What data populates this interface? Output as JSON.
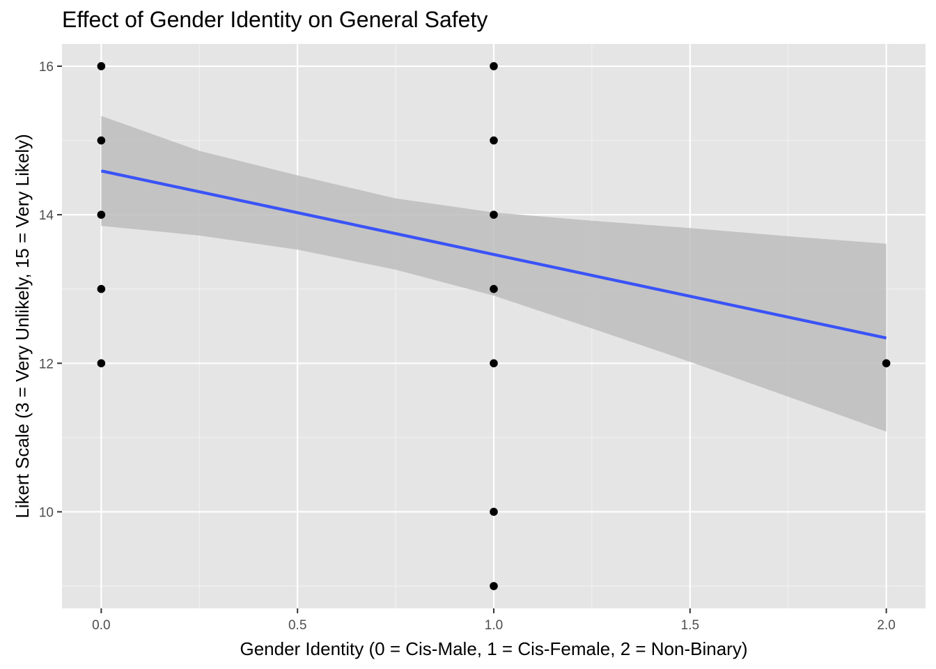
{
  "chart_data": {
    "type": "scatter",
    "title": "Effect of Gender Identity on General Safety",
    "xlabel": "Gender Identity (0 = Cis-Male, 1 = Cis-Female, 2 = Non-Binary)",
    "ylabel": "Likert Scale (3 = Very Unlikely, 15 = Very Likely)",
    "xlim": [
      -0.1,
      2.1
    ],
    "ylim": [
      8.7,
      16.3
    ],
    "x_ticks": [
      0.0,
      0.5,
      1.0,
      1.5,
      2.0
    ],
    "x_tick_labels": [
      "0.0",
      "0.5",
      "1.0",
      "1.5",
      "2.0"
    ],
    "y_ticks": [
      10,
      12,
      14,
      16
    ],
    "y_tick_labels": [
      "10",
      "12",
      "14",
      "16"
    ],
    "grid": true,
    "points": [
      {
        "x": 0,
        "y": 16
      },
      {
        "x": 0,
        "y": 15
      },
      {
        "x": 0,
        "y": 14
      },
      {
        "x": 0,
        "y": 13
      },
      {
        "x": 0,
        "y": 12
      },
      {
        "x": 1,
        "y": 16
      },
      {
        "x": 1,
        "y": 15
      },
      {
        "x": 1,
        "y": 14
      },
      {
        "x": 1,
        "y": 13
      },
      {
        "x": 1,
        "y": 12
      },
      {
        "x": 1,
        "y": 10
      },
      {
        "x": 1,
        "y": 9
      },
      {
        "x": 2,
        "y": 12
      }
    ],
    "fit_line": {
      "x": [
        0,
        2
      ],
      "y": [
        14.59,
        12.34
      ]
    },
    "confidence_band": [
      {
        "x": 0.0,
        "lower": 13.85,
        "upper": 15.33
      },
      {
        "x": 0.25,
        "lower": 13.72,
        "upper": 14.86
      },
      {
        "x": 0.5,
        "lower": 13.53,
        "upper": 14.53
      },
      {
        "x": 0.75,
        "lower": 13.26,
        "upper": 14.22
      },
      {
        "x": 1.0,
        "lower": 12.91,
        "upper": 14.03
      },
      {
        "x": 1.25,
        "lower": 12.47,
        "upper": 13.92
      },
      {
        "x": 1.5,
        "lower": 12.02,
        "upper": 13.82
      },
      {
        "x": 1.75,
        "lower": 11.55,
        "upper": 13.71
      },
      {
        "x": 2.0,
        "lower": 11.08,
        "upper": 13.61
      }
    ],
    "colors": {
      "panel_background": "#e5e5e5",
      "grid_major": "#ffffff",
      "grid_minor": "#f2f2f2",
      "fit_line": "#3a53f7",
      "band": "#bdbdbd",
      "point": "#000000"
    }
  }
}
